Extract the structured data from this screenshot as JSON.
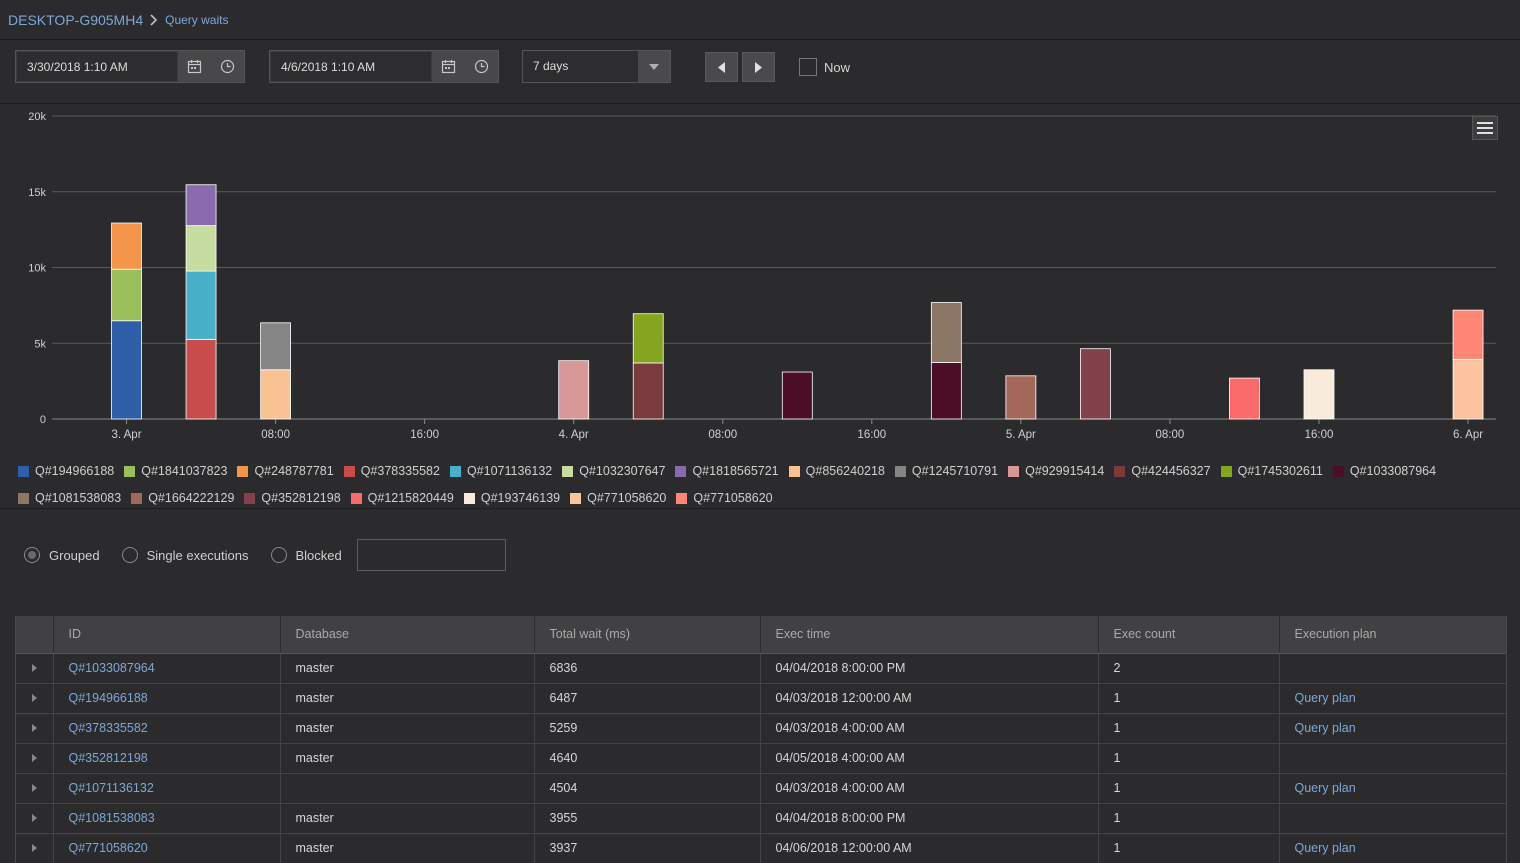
{
  "breadcrumb": {
    "host": "DESKTOP-G905MH4",
    "page": "Query waits"
  },
  "toolbar": {
    "from_value": "3/30/2018 1:10 AM",
    "to_value": "4/6/2018 1:10 AM",
    "range_value": "7 days",
    "now_label": "Now",
    "now_checked": false
  },
  "chart_data": {
    "type": "bar",
    "stacked": true,
    "ylim": [
      0,
      20000
    ],
    "ytick_labels": [
      "0",
      "5k",
      "10k",
      "15k",
      "20k"
    ],
    "yticks": [
      0,
      5000,
      10000,
      15000,
      20000
    ],
    "xtick_labels": [
      "3. Apr",
      "08:00",
      "16:00",
      "4. Apr",
      "08:00",
      "16:00",
      "5. Apr",
      "08:00",
      "16:00",
      "6. Apr"
    ],
    "xlim_hours": [
      -4,
      73.5
    ],
    "xticks_hours": [
      0,
      8,
      16,
      24,
      32,
      40,
      48,
      56,
      64,
      72
    ],
    "grid": true,
    "legend_placement": "bottom",
    "series": [
      {
        "name": "Q#194966188",
        "color": "#2f5ea8"
      },
      {
        "name": "Q#1841037823",
        "color": "#9cbf5e"
      },
      {
        "name": "Q#248787781",
        "color": "#f3964c"
      },
      {
        "name": "Q#378335582",
        "color": "#c94c4c"
      },
      {
        "name": "Q#1071136132",
        "color": "#47b0c8"
      },
      {
        "name": "Q#1032307647",
        "color": "#c6dca1"
      },
      {
        "name": "Q#1818565721",
        "color": "#8a6cae"
      },
      {
        "name": "Q#856240218",
        "color": "#f9c293"
      },
      {
        "name": "Q#1245710791",
        "color": "#858585"
      },
      {
        "name": "Q#929915414",
        "color": "#d99898"
      },
      {
        "name": "Q#424456327",
        "color": "#7a3b3f"
      },
      {
        "name": "Q#1745302611",
        "color": "#84a51d"
      },
      {
        "name": "Q#1033087964",
        "color": "#4a0f26"
      },
      {
        "name": "Q#1081538083",
        "color": "#8c7666"
      },
      {
        "name": "Q#1664222129",
        "color": "#a3685a"
      },
      {
        "name": "Q#352812198",
        "color": "#83414b"
      },
      {
        "name": "Q#1215820449",
        "color": "#fb6b6b"
      },
      {
        "name": "Q#193746139",
        "color": "#f8ebdc"
      },
      {
        "name": "Q#771058620",
        "color": "#fbc39f"
      },
      {
        "name": "Q#771058620",
        "color": "#fd8675"
      }
    ],
    "bars": [
      {
        "x_hours": 0,
        "segments": [
          {
            "series": 0,
            "value": 6487
          },
          {
            "series": 1,
            "value": 3400
          },
          {
            "series": 2,
            "value": 3050
          }
        ]
      },
      {
        "x_hours": 4,
        "segments": [
          {
            "series": 3,
            "value": 5259
          },
          {
            "series": 4,
            "value": 4504
          },
          {
            "series": 5,
            "value": 3000
          },
          {
            "series": 6,
            "value": 2700
          }
        ]
      },
      {
        "x_hours": 8,
        "segments": [
          {
            "series": 7,
            "value": 3250
          },
          {
            "series": 8,
            "value": 3100
          }
        ]
      },
      {
        "x_hours": 24,
        "segments": [
          {
            "series": 9,
            "value": 3850
          }
        ]
      },
      {
        "x_hours": 28,
        "segments": [
          {
            "series": 10,
            "value": 3700
          },
          {
            "series": 11,
            "value": 3250
          }
        ]
      },
      {
        "x_hours": 36,
        "segments": [
          {
            "series": 12,
            "value": 3100
          }
        ]
      },
      {
        "x_hours": 44,
        "segments": [
          {
            "series": 12,
            "value": 3736
          },
          {
            "series": 13,
            "value": 3955
          }
        ]
      },
      {
        "x_hours": 48,
        "segments": [
          {
            "series": 14,
            "value": 2850
          }
        ]
      },
      {
        "x_hours": 52,
        "segments": [
          {
            "series": 15,
            "value": 4640
          }
        ]
      },
      {
        "x_hours": 60,
        "segments": [
          {
            "series": 16,
            "value": 2700
          }
        ]
      },
      {
        "x_hours": 64,
        "segments": [
          {
            "series": 17,
            "value": 3250
          }
        ]
      },
      {
        "x_hours": 72,
        "segments": [
          {
            "series": 18,
            "value": 3937
          },
          {
            "series": 19,
            "value": 3250
          }
        ]
      }
    ]
  },
  "filters": {
    "options": [
      "Grouped",
      "Single executions",
      "Blocked"
    ],
    "selected": "Grouped",
    "search_value": ""
  },
  "table": {
    "columns": [
      "",
      "ID",
      "Database",
      "Total wait (ms)",
      "Exec time",
      "Exec count",
      "Execution plan"
    ],
    "rows": [
      {
        "id": "Q#1033087964",
        "database": "master",
        "total_wait": "6836",
        "exec_time": "04/04/2018 8:00:00 PM",
        "exec_count": "2",
        "plan": ""
      },
      {
        "id": "Q#194966188",
        "database": "master",
        "total_wait": "6487",
        "exec_time": "04/03/2018 12:00:00 AM",
        "exec_count": "1",
        "plan": "Query plan"
      },
      {
        "id": "Q#378335582",
        "database": "master",
        "total_wait": "5259",
        "exec_time": "04/03/2018 4:00:00 AM",
        "exec_count": "1",
        "plan": "Query plan"
      },
      {
        "id": "Q#352812198",
        "database": "master",
        "total_wait": "4640",
        "exec_time": "04/05/2018 4:00:00 AM",
        "exec_count": "1",
        "plan": ""
      },
      {
        "id": "Q#1071136132",
        "database": "",
        "total_wait": "4504",
        "exec_time": "04/03/2018 4:00:00 AM",
        "exec_count": "1",
        "plan": "Query plan"
      },
      {
        "id": "Q#1081538083",
        "database": "master",
        "total_wait": "3955",
        "exec_time": "04/04/2018 8:00:00 PM",
        "exec_count": "1",
        "plan": ""
      },
      {
        "id": "Q#771058620",
        "database": "master",
        "total_wait": "3937",
        "exec_time": "04/06/2018 12:00:00 AM",
        "exec_count": "1",
        "plan": "Query plan"
      }
    ]
  }
}
